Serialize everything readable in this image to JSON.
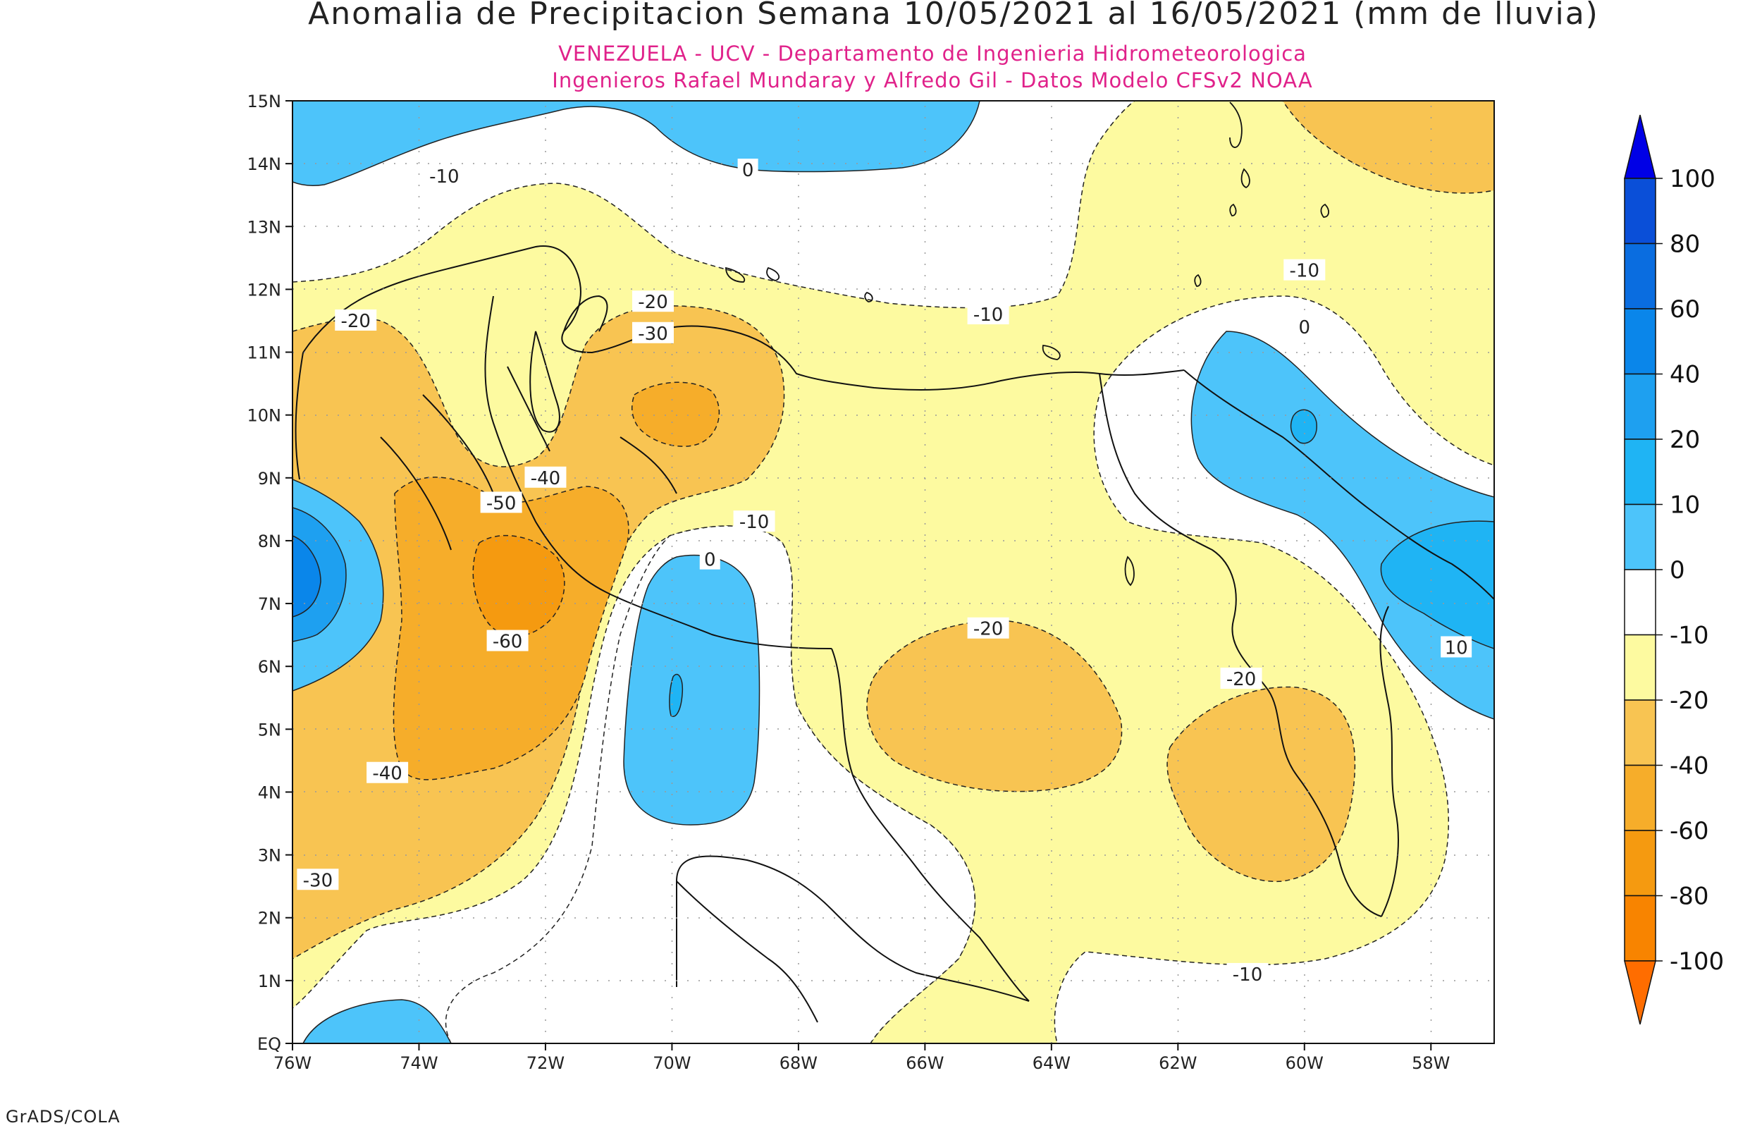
{
  "title": "Anomalia de Precipitacion Semana 10/05/2021 al 16/05/2021 (mm de lluvia)",
  "subtitle_1": "VENEZUELA - UCV - Departamento de Ingenieria Hidrometeorologica",
  "subtitle_2": "Ingenieros Rafael Mundaray y Alfredo Gil - Datos Modelo CFSv2 NOAA",
  "credit": "GrADS/COLA",
  "map": {
    "lon_range": [
      -76,
      -57
    ],
    "lat_range": [
      0,
      15
    ],
    "lon_ticks": [
      "76W",
      "74W",
      "72W",
      "70W",
      "68W",
      "66W",
      "64W",
      "62W",
      "60W",
      "58W"
    ],
    "lat_ticks": [
      "EQ",
      "1N",
      "2N",
      "3N",
      "4N",
      "5N",
      "6N",
      "7N",
      "8N",
      "9N",
      "10N",
      "11N",
      "12N",
      "13N",
      "14N",
      "15N"
    ],
    "grid": "dotted"
  },
  "contour_labels": [
    {
      "text": "-10",
      "lon": -73.6,
      "lat": 13.8
    },
    {
      "text": "0",
      "lon": -68.8,
      "lat": 13.9
    },
    {
      "text": "-20",
      "lon": -75.0,
      "lat": 11.5
    },
    {
      "text": "-20",
      "lon": -70.3,
      "lat": 11.8
    },
    {
      "text": "-30",
      "lon": -70.3,
      "lat": 11.3
    },
    {
      "text": "-10",
      "lon": -65.0,
      "lat": 11.6
    },
    {
      "text": "-10",
      "lon": -60.0,
      "lat": 12.3
    },
    {
      "text": "0",
      "lon": -60.0,
      "lat": 11.4
    },
    {
      "text": "-40",
      "lon": -72.0,
      "lat": 9.0
    },
    {
      "text": "-50",
      "lon": -72.7,
      "lat": 8.6
    },
    {
      "text": "-10",
      "lon": -68.7,
      "lat": 8.3
    },
    {
      "text": "0",
      "lon": -69.4,
      "lat": 7.7
    },
    {
      "text": "-60",
      "lon": -72.6,
      "lat": 6.4
    },
    {
      "text": "-20",
      "lon": -65.0,
      "lat": 6.6
    },
    {
      "text": "-20",
      "lon": -61.0,
      "lat": 5.8
    },
    {
      "text": "10",
      "lon": -57.6,
      "lat": 6.3
    },
    {
      "text": "-40",
      "lon": -74.5,
      "lat": 4.3
    },
    {
      "text": "-30",
      "lon": -75.6,
      "lat": 2.6
    },
    {
      "text": "-10",
      "lon": -60.9,
      "lat": 1.1
    }
  ],
  "colorbar": {
    "labels": [
      "100",
      "80",
      "60",
      "40",
      "20",
      "10",
      "0",
      "-10",
      "-20",
      "-40",
      "-60",
      "-80",
      "-100"
    ],
    "colors": [
      "#0000e6",
      "#0a4fd8",
      "#0a6de0",
      "#0a86ea",
      "#1ea0f0",
      "#1fb4f4",
      "#4dc4fa",
      "#ffffff",
      "#fdfaa0",
      "#f8c452",
      "#f6ad2a",
      "#f59a10",
      "#f88400",
      "#ff6d00"
    ]
  },
  "fill_colors": {
    "positive_10": "#1fb4f4",
    "positive_0": "#4dc4fa",
    "neutral": "#ffffff",
    "neg_10": "#fdfaa0",
    "neg_20": "#f8c452",
    "neg_40": "#f6ad2a",
    "neg_60": "#f59a10"
  }
}
